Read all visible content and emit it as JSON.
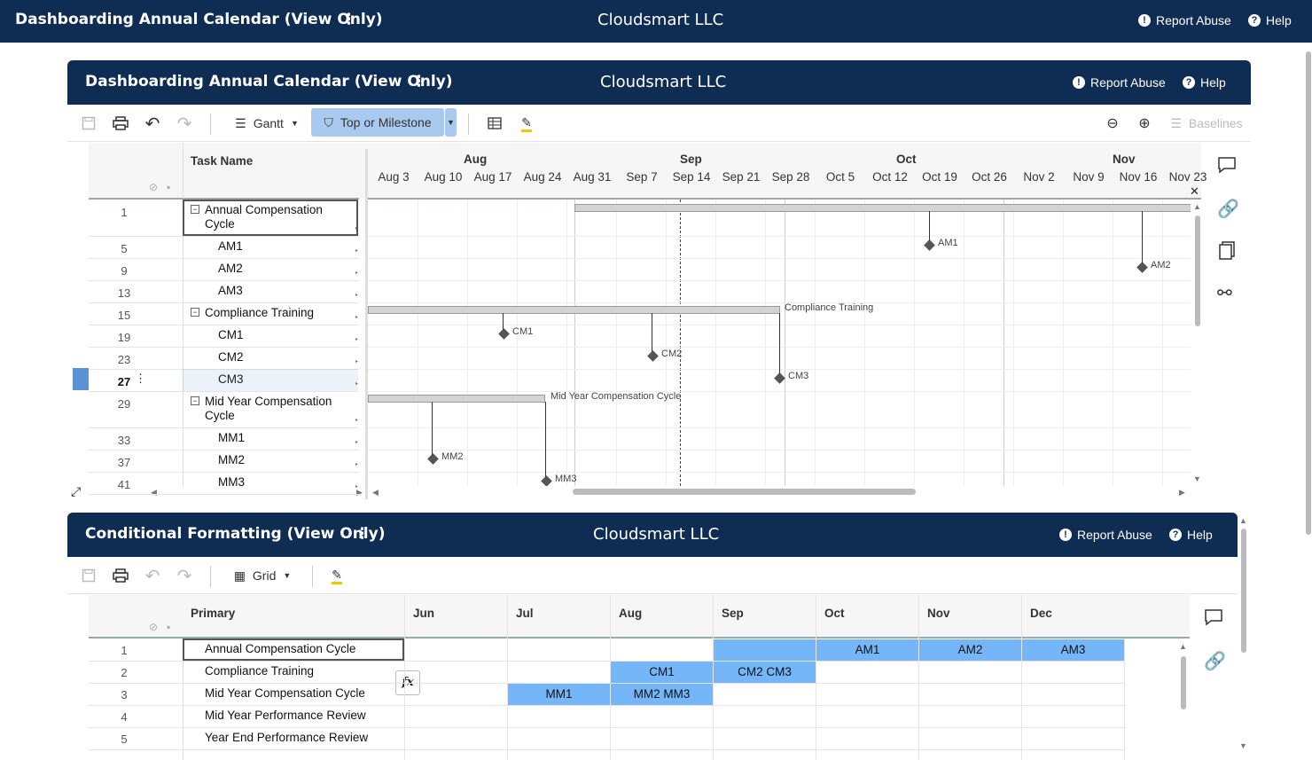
{
  "topbar": {
    "title": "Dashboarding Annual Calendar (View Only)",
    "org": "Cloudsmart LLC",
    "report": "Report Abuse",
    "help": "Help"
  },
  "panel1": {
    "title": "Dashboarding Annual Calendar (View Only)",
    "org": "Cloudsmart LLC",
    "report": "Report Abuse",
    "help": "Help",
    "toolbar": {
      "view": "Gantt",
      "filter": "Top or Milestone",
      "baselines": "Baselines"
    },
    "grid": {
      "col_task": "Task Name",
      "rows": [
        {
          "num": "1",
          "name": "Annual Compensation Cycle"
        },
        {
          "num": "5",
          "name": "AM1"
        },
        {
          "num": "9",
          "name": "AM2"
        },
        {
          "num": "13",
          "name": "AM3"
        },
        {
          "num": "15",
          "name": "Compliance Training"
        },
        {
          "num": "19",
          "name": "CM1"
        },
        {
          "num": "23",
          "name": "CM2"
        },
        {
          "num": "27",
          "name": "CM3"
        },
        {
          "num": "29",
          "name": "Mid Year Compensation Cycle"
        },
        {
          "num": "33",
          "name": "MM1"
        },
        {
          "num": "37",
          "name": "MM2"
        },
        {
          "num": "41",
          "name": "MM3"
        }
      ]
    },
    "gantt": {
      "months": [
        "Aug",
        "Sep",
        "Oct",
        "Nov"
      ],
      "weeks": [
        "Aug 3",
        "Aug 10",
        "Aug 17",
        "Aug 24",
        "Aug 31",
        "Sep 7",
        "Sep 14",
        "Sep 21",
        "Sep 28",
        "Oct 5",
        "Oct 12",
        "Oct 19",
        "Oct 26",
        "Nov 2",
        "Nov 9",
        "Nov 16",
        "Nov 23"
      ],
      "labels": {
        "am1": "AM1",
        "am2": "AM2",
        "ct": "Compliance Training",
        "cm1": "CM1",
        "cm2": "CM2",
        "cm3": "CM3",
        "myc": "Mid Year Compensation Cycle",
        "mm2": "MM2",
        "mm3": "MM3"
      }
    }
  },
  "panel2": {
    "title": "Conditional Formatting (View Only)",
    "org": "Cloudsmart LLC",
    "report": "Report Abuse",
    "help": "Help",
    "toolbar": {
      "view": "Grid"
    },
    "grid": {
      "col_primary": "Primary",
      "months": [
        "Jun",
        "Jul",
        "Aug",
        "Sep",
        "Oct",
        "Nov",
        "Dec"
      ],
      "rows": [
        {
          "num": "1",
          "name": "Annual Compensation Cycle"
        },
        {
          "num": "2",
          "name": "Compliance Training"
        },
        {
          "num": "3",
          "name": "Mid Year Compensation Cycle"
        },
        {
          "num": "4",
          "name": "Mid Year Performance Review"
        },
        {
          "num": "5",
          "name": "Year End Performance Review"
        }
      ],
      "cells": {
        "r1_sep": "",
        "r1_oct": "AM1",
        "r1_nov": "AM2",
        "r1_dec": "AM3",
        "r2_aug": "CM1",
        "r2_sep": "CM2 CM3",
        "r3_jul": "MM1",
        "r3_aug": "MM2 MM3"
      }
    },
    "fx": "fx"
  },
  "colors": {
    "header": "#0f2d52",
    "highlight": "#74b6f7",
    "filter_active": "#a9c9ee"
  }
}
